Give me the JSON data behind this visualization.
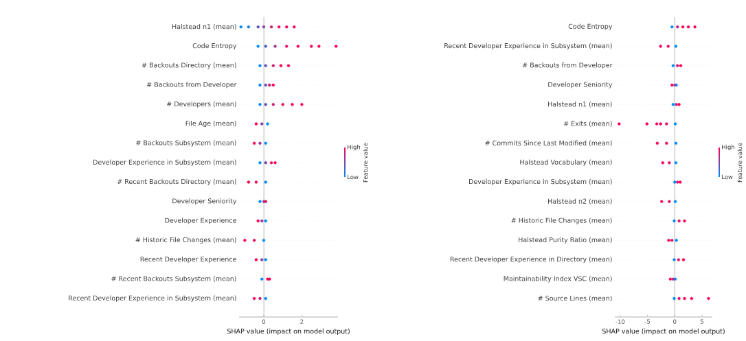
{
  "chart_data": [
    {
      "type": "scatter",
      "orientation": "horizontal",
      "xlabel": "SHAP value (impact on model output)",
      "clabel": "Feature value",
      "annotations": [
        "High",
        "Low"
      ],
      "xlim": [
        -1.3,
        3.9
      ],
      "xticks": [
        0,
        2
      ],
      "grid": "y",
      "marker": "circle",
      "ref_lines": [
        {
          "axis": "x",
          "value": 0,
          "color": "#999999"
        }
      ],
      "categories": [
        "Halstead n1 (mean)",
        "Code Entropy",
        "# Backouts Directory (mean)",
        "# Backouts from Developer",
        "# Developers (mean)",
        "File Age (mean)",
        "# Backouts Subsystem (mean)",
        "Developer Experience in Subsystem (mean)",
        "# Recent Backouts Directory (mean)",
        "Developer Seniority",
        "Developer Experience",
        "# Historic File Changes (mean)",
        "Recent Developer Experience",
        "# Recent Backouts Subsystem (mean)",
        "Recent Developer Experience in Subsystem (mean)"
      ],
      "series": [
        {
          "values": [
            -1.2,
            -0.3,
            -0.2,
            -0.2,
            -0.2,
            0.2,
            0.1,
            -0.2,
            0.1,
            -0.2,
            0.1,
            0,
            0.1,
            -0.1,
            0.1
          ],
          "colors": [
            "#008bfb",
            "#008bfb",
            "#008bfb",
            "#008bfb",
            "#008bfb",
            "#008bfb",
            "#008bfb",
            "#008bfb",
            "#008bfb",
            "#008bfb",
            "#008bfb",
            "#008bfb",
            "#008bfb",
            "#008bfb",
            "#008bfb"
          ]
        },
        {
          "values": [
            -0.8,
            0.1,
            0.1,
            0.1,
            0.1,
            -0.1,
            -0.2,
            0.1,
            -0.4,
            0,
            -0.1,
            -0.5,
            -0.1,
            0.2,
            -0.2
          ],
          "colors": [
            "#1a7dea",
            "#4d61c8",
            "#6653b7",
            "#6653b7",
            "#6653b7",
            "#8046a6",
            "#993895",
            "#8046a6",
            "#e60e62",
            "#8046a6",
            "#993895",
            "#e60e62",
            "#8046a6",
            "#e60e62",
            "#cc1c73"
          ]
        },
        {
          "values": [
            -0.3,
            0.6,
            0.5,
            0.3,
            0.5,
            -0.4,
            -0.5,
            0.4,
            -0.8,
            0.1,
            -0.3,
            -1.0,
            -0.4,
            0.3,
            -0.5
          ],
          "colors": [
            "#6653b7",
            "#993895",
            "#cc1c73",
            "#cc1c73",
            "#cc1c73",
            "#ff0051",
            "#ff0051",
            "#e60e62",
            "#ff0051",
            "#ff0051",
            "#ff0051",
            "#ff0051",
            "#ff0051",
            "#ff0051",
            "#ff0051"
          ]
        },
        {
          "values": [
            0,
            1.2,
            0.9,
            0.5,
            1.0,
            null,
            null,
            0.6,
            null,
            null,
            null,
            null,
            null,
            null,
            null
          ],
          "colors": [
            "#8046a6",
            "#e60e62",
            "#ff0051",
            "#ff0051",
            "#e60e62",
            null,
            null,
            "#ff0051",
            null,
            null,
            null,
            null,
            null,
            null,
            null
          ]
        },
        {
          "values": [
            0.4,
            1.8,
            1.3,
            null,
            1.5,
            null,
            null,
            null,
            null,
            null,
            null,
            null,
            null,
            null,
            null
          ],
          "colors": [
            "#cc1c73",
            "#ff0051",
            "#ff0051",
            null,
            "#ff0051",
            null,
            null,
            null,
            null,
            null,
            null,
            null,
            null,
            null,
            null
          ]
        },
        {
          "values": [
            0.8,
            2.5,
            null,
            null,
            2.0,
            null,
            null,
            null,
            null,
            null,
            null,
            null,
            null,
            null,
            null
          ],
          "colors": [
            "#e60e62",
            "#ff0051",
            null,
            null,
            "#ff0051",
            null,
            null,
            null,
            null,
            null,
            null,
            null,
            null,
            null,
            null
          ]
        },
        {
          "values": [
            1.2,
            2.9,
            null,
            null,
            null,
            null,
            null,
            null,
            null,
            null,
            null,
            null,
            null,
            null,
            null
          ],
          "colors": [
            "#ff0051",
            "#ff0051",
            null,
            null,
            null,
            null,
            null,
            null,
            null,
            null,
            null,
            null,
            null,
            null,
            null
          ]
        },
        {
          "values": [
            1.6,
            3.8,
            null,
            null,
            null,
            null,
            null,
            null,
            null,
            null,
            null,
            null,
            null,
            null,
            null
          ],
          "colors": [
            "#ff0051",
            "#ff0051",
            null,
            null,
            null,
            null,
            null,
            null,
            null,
            null,
            null,
            null,
            null,
            null,
            null
          ]
        }
      ]
    },
    {
      "type": "scatter",
      "orientation": "horizontal",
      "xlabel": "SHAP value (impact on model output)",
      "clabel": "Feature value",
      "annotations": [
        "High",
        "Low"
      ],
      "xlim": [
        -11,
        6.9
      ],
      "xticks": [
        -10,
        -5,
        0,
        5
      ],
      "grid": "y",
      "marker": "circle",
      "ref_lines": [
        {
          "axis": "x",
          "value": 0,
          "color": "#999999"
        }
      ],
      "categories": [
        "Code Entropy",
        "Recent Developer Experience in Subsystem (mean)",
        "# Backouts from Developer",
        "Developer Seniority",
        "Halstead n1 (mean)",
        "# Exits (mean)",
        "# Commits Since Last Modified (mean)",
        "Halstead Vocabulary (mean)",
        "Developer Experience in Subsystem (mean)",
        "Halstead n2 (mean)",
        "# Historic File Changes (mean)",
        "Halstead Purity Ratio (mean)",
        "Recent Developer Experience in Directory (mean)",
        "Maintainability Index VSC (mean)",
        "# Source Lines (mean)"
      ],
      "series": [
        {
          "values": [
            -0.5,
            0.2,
            -0.3,
            0.3,
            -0.3,
            0.1,
            0.2,
            0.2,
            0,
            0.1,
            -0.1,
            0.3,
            -0.1,
            0.1,
            -0.1
          ],
          "colors": [
            "#008bfb",
            "#008bfb",
            "#008bfb",
            "#008bfb",
            "#008bfb",
            "#008bfb",
            "#008bfb",
            "#008bfb",
            "#008bfb",
            "#008bfb",
            "#008bfb",
            "#008bfb",
            "#008bfb",
            "#008bfb",
            "#008bfb"
          ]
        },
        {
          "values": [
            0.5,
            -1.2,
            0.5,
            0,
            0.3,
            -1.5,
            -1.5,
            -1,
            0.5,
            -1,
            0.8,
            -0.5,
            0.7,
            -0.3,
            0.8
          ],
          "colors": [
            "#cc1c73",
            "#e60e62",
            "#cc1c73",
            "#8046a6",
            "#b32a84",
            "#e60e62",
            "#e60e62",
            "#e60e62",
            "#cc1c73",
            "#e60e62",
            "#e60e62",
            "#cc1c73",
            "#e60e62",
            "#b32a84",
            "#e60e62"
          ]
        },
        {
          "values": [
            1.5,
            -2.6,
            1.1,
            -0.5,
            0.8,
            -2.6,
            -3.2,
            -2.2,
            1.0,
            -2.4,
            1.8,
            -1.1,
            1.6,
            -0.8,
            1.8
          ],
          "colors": [
            "#ff0051",
            "#ff0051",
            "#ff0051",
            "#ff0051",
            "#ff0051",
            "#ff0051",
            "#ff0051",
            "#ff0051",
            "#ff0051",
            "#ff0051",
            "#ff0051",
            "#ff0051",
            "#ff0051",
            "#ff0051",
            "#ff0051"
          ]
        },
        {
          "values": [
            2.5,
            null,
            null,
            null,
            null,
            -3.3,
            null,
            null,
            null,
            null,
            null,
            null,
            null,
            null,
            3.1
          ],
          "colors": [
            "#ff0051",
            null,
            null,
            null,
            null,
            "#ff0051",
            null,
            null,
            null,
            null,
            null,
            null,
            null,
            null,
            "#ff0051"
          ]
        },
        {
          "values": [
            3.7,
            null,
            null,
            null,
            null,
            -5.1,
            null,
            null,
            null,
            null,
            null,
            null,
            null,
            null,
            6.2
          ],
          "colors": [
            "#ff0051",
            null,
            null,
            null,
            null,
            "#ff0051",
            null,
            null,
            null,
            null,
            null,
            null,
            null,
            null,
            "#ff0051"
          ]
        },
        {
          "values": [
            null,
            null,
            null,
            null,
            null,
            -10.2,
            null,
            null,
            null,
            null,
            null,
            null,
            null,
            null,
            null
          ],
          "colors": [
            null,
            null,
            null,
            null,
            null,
            "#ff0051",
            null,
            null,
            null,
            null,
            null,
            null,
            null,
            null,
            null
          ]
        }
      ]
    }
  ]
}
